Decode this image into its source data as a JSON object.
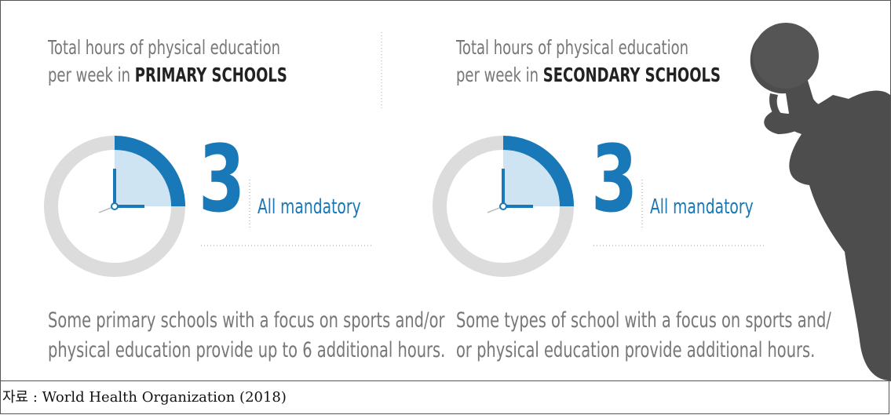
{
  "panels": [
    {
      "title_line1": "Total hours of physical education",
      "title_prefix": "per week in",
      "title_emphasis": "PRIMARY SCHOOLS",
      "hours": 3,
      "status": "All mandatory",
      "note_line1": "Some primary schools with a focus on sports and/or",
      "note_line2": "physical education provide up to 6 additional hours."
    },
    {
      "title_line1": "Total hours of physical education",
      "title_prefix": "per week in",
      "title_emphasis": "SECONDARY SCHOOLS",
      "hours": 3,
      "status": "All mandatory",
      "note_line1": "Some types of school with a focus on sports and/",
      "note_line2": "or physical education provide additional hours."
    }
  ],
  "source": "자료 : World Health Organization (2018)"
}
